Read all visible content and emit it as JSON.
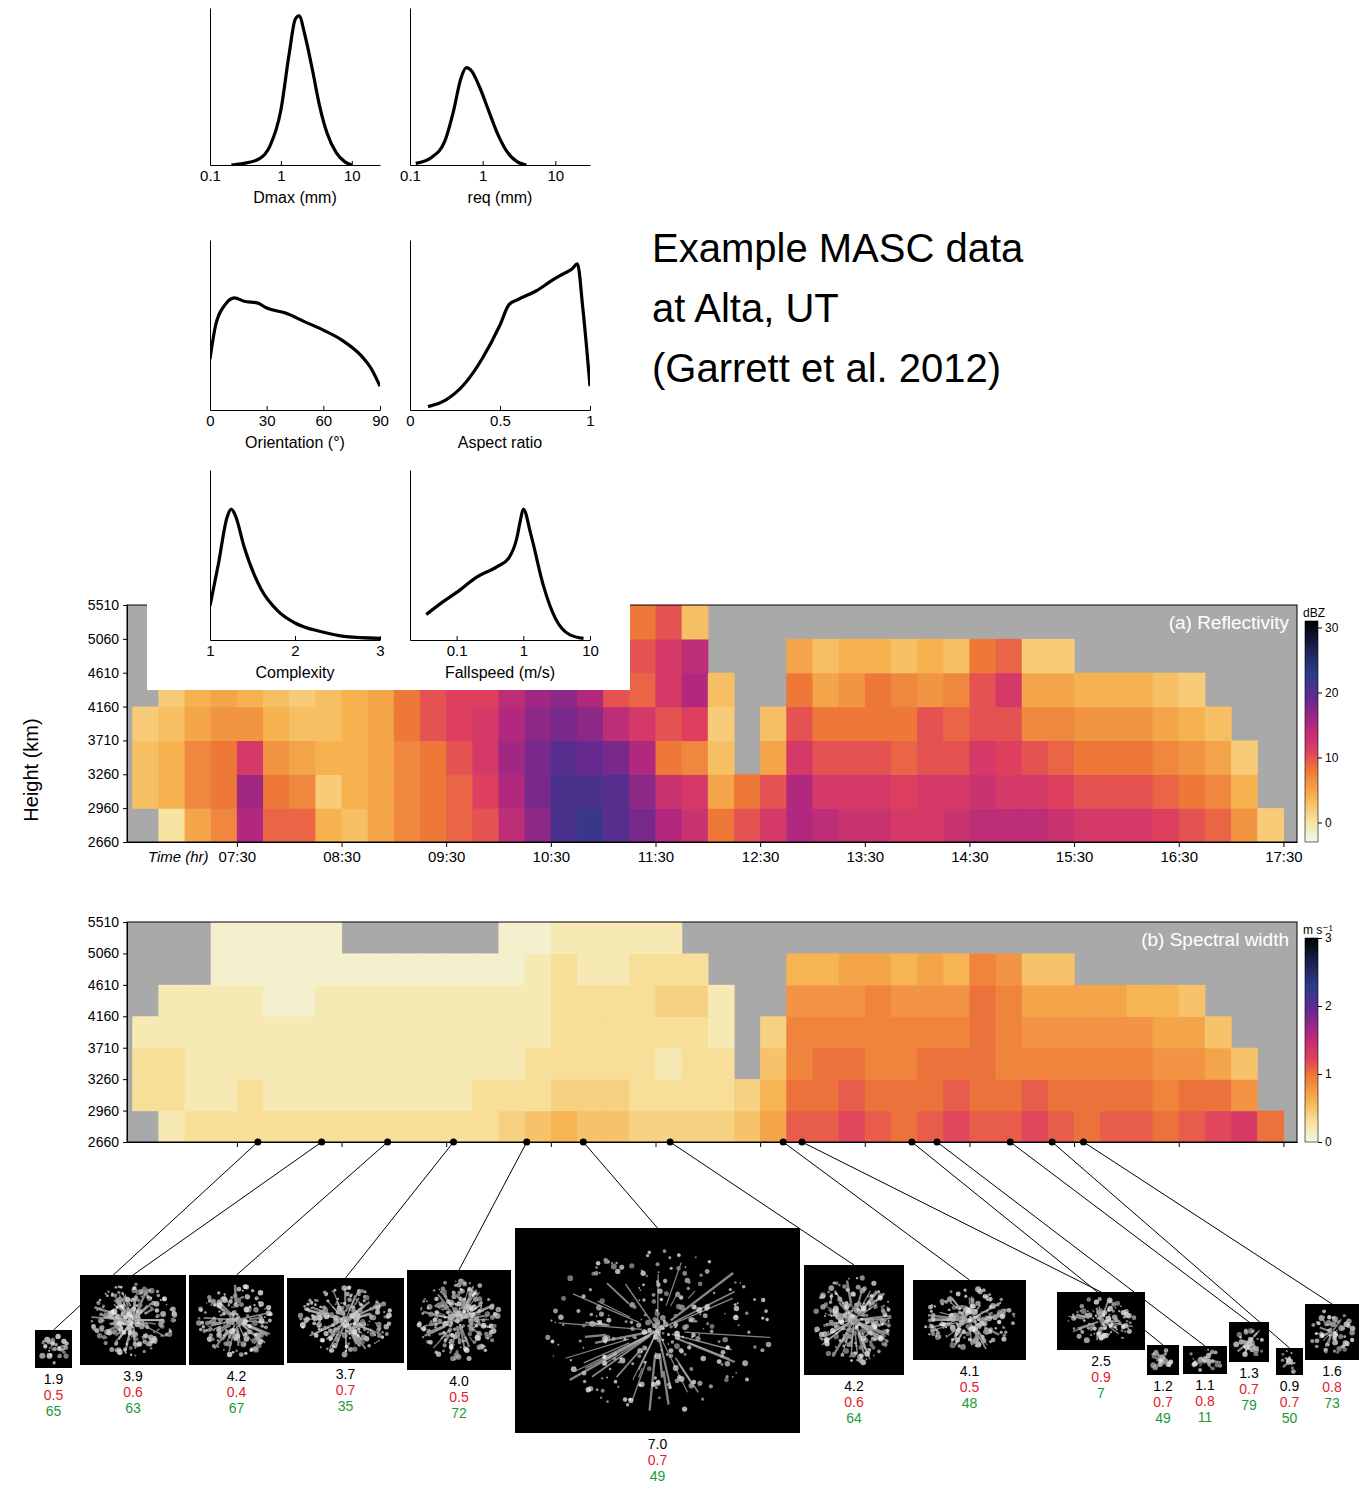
{
  "caption": [
    "Example MASC data",
    "at Alta, UT",
    "(Garrett et al. 2012)"
  ],
  "chart_data": [
    {
      "type": "line",
      "xlabel": "Dmax (mm)",
      "x": [
        0.2,
        0.3,
        0.5,
        0.7,
        1.0,
        1.3,
        1.6,
        1.8,
        2.2,
        2.8,
        3.5,
        4.5,
        6,
        8,
        10
      ],
      "values": [
        0,
        0.01,
        0.04,
        0.12,
        0.35,
        0.7,
        0.93,
        0.95,
        0.82,
        0.6,
        0.38,
        0.2,
        0.08,
        0.02,
        0
      ],
      "xlim": [
        0.1,
        25
      ],
      "ylim": [
        0,
        1
      ],
      "xticks": [
        0.1,
        1,
        10
      ],
      "log": "x",
      "tick_labels": "x",
      "color": "#000000"
    },
    {
      "type": "line",
      "xlabel": "req (mm)",
      "x": [
        0.12,
        0.2,
        0.3,
        0.4,
        0.5,
        0.6,
        0.7,
        0.9,
        1.2,
        1.6,
        2.2,
        3,
        4
      ],
      "values": [
        0.01,
        0.05,
        0.15,
        0.35,
        0.55,
        0.62,
        0.6,
        0.5,
        0.35,
        0.2,
        0.08,
        0.02,
        0
      ],
      "xlim": [
        0.1,
        30
      ],
      "ylim": [
        0,
        1
      ],
      "xticks": [
        0.1,
        1,
        10
      ],
      "log": "x",
      "tick_labels": "x",
      "color": "#000000"
    },
    {
      "type": "line",
      "xlabel": "Orientation (°)",
      "x": [
        0,
        3,
        8,
        13,
        18,
        25,
        30,
        40,
        50,
        60,
        70,
        80,
        85,
        90
      ],
      "values": [
        0.3,
        0.5,
        0.62,
        0.66,
        0.64,
        0.63,
        0.6,
        0.57,
        0.52,
        0.47,
        0.41,
        0.32,
        0.25,
        0.14
      ],
      "xlim": [
        0,
        90
      ],
      "ylim": [
        0,
        1
      ],
      "xticks": [
        0,
        30,
        60,
        90
      ],
      "tick_labels": "x",
      "color": "#000000"
    },
    {
      "type": "line",
      "xlabel": "Aspect ratio",
      "x": [
        0.1,
        0.2,
        0.3,
        0.4,
        0.5,
        0.55,
        0.6,
        0.7,
        0.8,
        0.85,
        0.9,
        0.93,
        0.96,
        1.0
      ],
      "values": [
        0.02,
        0.06,
        0.15,
        0.3,
        0.5,
        0.62,
        0.65,
        0.7,
        0.77,
        0.8,
        0.83,
        0.86,
        0.6,
        0.14
      ],
      "xlim": [
        0,
        1
      ],
      "ylim": [
        0,
        1
      ],
      "xticks": [
        0,
        0.5,
        1
      ],
      "tick_labels": "x",
      "color": "#000000"
    },
    {
      "type": "line",
      "xlabel": "Complexity",
      "x": [
        1,
        1.1,
        1.2,
        1.25,
        1.3,
        1.4,
        1.6,
        1.8,
        2.0,
        2.3,
        2.6,
        3
      ],
      "values": [
        0.2,
        0.45,
        0.72,
        0.77,
        0.73,
        0.55,
        0.3,
        0.17,
        0.1,
        0.05,
        0.02,
        0.01
      ],
      "xlim": [
        1,
        3
      ],
      "ylim": [
        0,
        1
      ],
      "xticks": [
        1,
        2,
        3
      ],
      "tick_labels": "x",
      "color": "#000000"
    },
    {
      "type": "line",
      "xlabel": "Fallspeed (m/s)",
      "x": [
        0.035,
        0.06,
        0.1,
        0.2,
        0.4,
        0.6,
        0.8,
        0.9,
        1.0,
        1.3,
        2,
        3,
        5,
        8
      ],
      "values": [
        0.15,
        0.22,
        0.28,
        0.37,
        0.43,
        0.48,
        0.6,
        0.7,
        0.77,
        0.62,
        0.32,
        0.13,
        0.03,
        0.01
      ],
      "xlim": [
        0.02,
        10
      ],
      "ylim": [
        0,
        1
      ],
      "xticks": [
        0.1,
        1,
        10
      ],
      "log": "x",
      "tick_labels": "x",
      "color": "#000000"
    },
    {
      "type": "heatmap",
      "title": "(a) Reflectivity",
      "xlabel": "Time (hr)",
      "ylabel": "Height (km)",
      "x_edges": [
        6.5,
        6.75,
        7,
        7.25,
        7.5,
        7.75,
        8,
        8.25,
        8.5,
        8.75,
        9,
        9.25,
        9.5,
        9.75,
        10,
        10.25,
        10.5,
        10.75,
        11,
        11.25,
        11.5,
        11.75,
        12,
        12.25,
        12.5,
        12.75,
        13,
        13.25,
        13.5,
        13.75,
        14,
        14.25,
        14.5,
        14.75,
        15,
        15.25,
        15.5,
        15.75,
        16,
        16.25,
        16.5,
        16.75,
        17,
        17.25,
        17.5
      ],
      "y_edges": [
        2660,
        2960,
        3260,
        3710,
        4160,
        4610,
        5060,
        5510
      ],
      "cells": [
        [
          null,
          0,
          5,
          7,
          15,
          9,
          9,
          4,
          3,
          5,
          7,
          8,
          9,
          10,
          14,
          17,
          21,
          22,
          20,
          18,
          15,
          13,
          8,
          10,
          12,
          15,
          14,
          13,
          13,
          12,
          12,
          13,
          14,
          14,
          14,
          13,
          12,
          12,
          12,
          11,
          10,
          9,
          6,
          2
        ],
        [
          3,
          4,
          7,
          8,
          16,
          8,
          7,
          2,
          4,
          5,
          7,
          8,
          9,
          11,
          15,
          18,
          21,
          21,
          20,
          17,
          13,
          12,
          5,
          8,
          10,
          15,
          12,
          12,
          12,
          11,
          12,
          12,
          13,
          12,
          12,
          11,
          10,
          10,
          10,
          9,
          8,
          7,
          4,
          null
        ],
        [
          3,
          4,
          7,
          8,
          12,
          6,
          5,
          4,
          4,
          5,
          7,
          8,
          10,
          12,
          16,
          18,
          20,
          19,
          18,
          15,
          8,
          7,
          3,
          null,
          5,
          12,
          10,
          10,
          10,
          9,
          10,
          10,
          12,
          11,
          10,
          9,
          8,
          8,
          8,
          7,
          6,
          5,
          2,
          null
        ],
        [
          2,
          3,
          5,
          6,
          6,
          4,
          3,
          3,
          4,
          5,
          8,
          10,
          11,
          12,
          15,
          17,
          18,
          17,
          14,
          12,
          10,
          11,
          2,
          null,
          3,
          10,
          8,
          8,
          8,
          8,
          10,
          9,
          10,
          10,
          7,
          7,
          6,
          6,
          6,
          5,
          4,
          3,
          null,
          null
        ],
        [
          null,
          2,
          4,
          5,
          4,
          3,
          2,
          3,
          4,
          5,
          8,
          10,
          11,
          11,
          14,
          16,
          17,
          15,
          10,
          9,
          12,
          15,
          3,
          null,
          null,
          8,
          5,
          6,
          8,
          7,
          6,
          7,
          10,
          12,
          5,
          5,
          4,
          4,
          4,
          3,
          2,
          null,
          null,
          null
        ],
        [
          null,
          null,
          null,
          null,
          null,
          null,
          null,
          null,
          null,
          null,
          null,
          null,
          null,
          null,
          null,
          null,
          null,
          null,
          null,
          10,
          12,
          14,
          null,
          null,
          null,
          5,
          3,
          4,
          4,
          3,
          4,
          3,
          8,
          9,
          2,
          2,
          null,
          null,
          null,
          null,
          null,
          null,
          null,
          null
        ],
        [
          null,
          null,
          null,
          null,
          null,
          null,
          null,
          null,
          null,
          null,
          null,
          null,
          null,
          null,
          null,
          null,
          null,
          null,
          null,
          8,
          10,
          3,
          null,
          null,
          null,
          null,
          null,
          null,
          null,
          null,
          null,
          null,
          null,
          null,
          null,
          null,
          null,
          null,
          null,
          null,
          null,
          null,
          null,
          null
        ]
      ],
      "xlim": [
        6.45,
        17.63
      ],
      "ylim": [
        2660,
        5510
      ],
      "xticks": [
        {
          "value": 7.5,
          "label": "07:30"
        },
        {
          "value": 8.5,
          "label": "08:30"
        },
        {
          "value": 9.5,
          "label": "09:30"
        },
        {
          "value": 10.5,
          "label": "10:30"
        },
        {
          "value": 11.5,
          "label": "11:30"
        },
        {
          "value": 12.5,
          "label": "12:30"
        },
        {
          "value": 13.5,
          "label": "13:30"
        },
        {
          "value": 14.5,
          "label": "14:30"
        },
        {
          "value": 15.5,
          "label": "15:30"
        },
        {
          "value": 16.5,
          "label": "16:30"
        },
        {
          "value": 17.5,
          "label": "17:30"
        }
      ],
      "yticks": [
        2660,
        2960,
        3260,
        3710,
        4160,
        4610,
        5060,
        5510
      ],
      "colorbar": {
        "label": "dBZ",
        "range": [
          -3,
          31
        ],
        "ticks": [
          0,
          10,
          20,
          30
        ]
      }
    },
    {
      "type": "heatmap",
      "title": "(b) Spectral width",
      "x_edges": [
        6.5,
        6.75,
        7,
        7.25,
        7.5,
        7.75,
        8,
        8.25,
        8.5,
        8.75,
        9,
        9.25,
        9.5,
        9.75,
        10,
        10.25,
        10.5,
        10.75,
        11,
        11.25,
        11.5,
        11.75,
        12,
        12.25,
        12.5,
        12.75,
        13,
        13.25,
        13.5,
        13.75,
        14,
        14.25,
        14.5,
        14.75,
        15,
        15.25,
        15.5,
        15.75,
        16,
        16.25,
        16.5,
        16.75,
        17,
        17.25,
        17.5
      ],
      "y_edges": [
        2660,
        2960,
        3260,
        3710,
        4160,
        4610,
        5060,
        5510
      ],
      "cells": [
        [
          null,
          0.2,
          0.3,
          0.3,
          0.3,
          0.3,
          0.3,
          0.3,
          0.3,
          0.3,
          0.3,
          0.3,
          0.3,
          0.3,
          0.4,
          0.5,
          0.6,
          0.5,
          0.5,
          0.4,
          0.4,
          0.4,
          0.4,
          0.5,
          0.7,
          1.1,
          1.1,
          1.2,
          1.1,
          1.0,
          1.1,
          1.2,
          1.1,
          1.1,
          1.2,
          1.1,
          1.0,
          1.1,
          1.1,
          1.0,
          1.1,
          1.2,
          1.3,
          1.0
        ],
        [
          0.3,
          0.3,
          0.2,
          0.2,
          0.3,
          0.2,
          0.2,
          0.2,
          0.2,
          0.2,
          0.2,
          0.2,
          0.2,
          0.3,
          0.3,
          0.3,
          0.4,
          0.4,
          0.4,
          0.3,
          0.3,
          0.3,
          0.3,
          0.4,
          0.6,
          1.0,
          1.0,
          1.1,
          1.0,
          1.0,
          1.0,
          1.1,
          1.0,
          1.0,
          1.1,
          1.0,
          1.0,
          1.0,
          1.0,
          0.9,
          1.0,
          1.0,
          0.8,
          null
        ],
        [
          0.3,
          0.3,
          0.2,
          0.2,
          0.2,
          0.2,
          0.2,
          0.2,
          0.2,
          0.2,
          0.2,
          0.2,
          0.2,
          0.2,
          0.2,
          0.3,
          0.3,
          0.3,
          0.3,
          0.3,
          0.2,
          0.3,
          0.3,
          null,
          0.5,
          0.9,
          1.0,
          1.0,
          0.9,
          0.9,
          1.0,
          1.0,
          1.0,
          0.9,
          0.9,
          0.9,
          0.9,
          0.9,
          0.9,
          0.8,
          0.8,
          0.7,
          0.5,
          null
        ],
        [
          0.2,
          0.2,
          0.2,
          0.2,
          0.2,
          0.2,
          0.2,
          0.2,
          0.2,
          0.2,
          0.2,
          0.2,
          0.2,
          0.2,
          0.2,
          0.2,
          0.3,
          0.3,
          0.3,
          0.3,
          0.3,
          0.3,
          0.2,
          null,
          0.4,
          0.9,
          0.9,
          0.9,
          0.9,
          0.9,
          0.9,
          0.9,
          1.0,
          0.9,
          0.8,
          0.8,
          0.8,
          0.8,
          0.8,
          0.7,
          0.7,
          0.5,
          null,
          null
        ],
        [
          null,
          0.2,
          0.2,
          0.2,
          0.2,
          0.1,
          0.1,
          0.2,
          0.2,
          0.2,
          0.2,
          0.2,
          0.2,
          0.2,
          0.2,
          0.2,
          0.3,
          0.3,
          0.3,
          0.3,
          0.4,
          0.4,
          0.2,
          null,
          null,
          0.8,
          0.8,
          0.8,
          0.9,
          0.8,
          0.8,
          0.8,
          1.0,
          0.9,
          0.7,
          0.7,
          0.7,
          0.7,
          0.6,
          0.6,
          0.5,
          null,
          null,
          null
        ],
        [
          null,
          null,
          null,
          0.1,
          0.1,
          0.1,
          0.1,
          0.1,
          0.1,
          0.1,
          0.1,
          0.1,
          0.1,
          0.1,
          0.1,
          0.2,
          0.3,
          0.2,
          0.2,
          0.3,
          0.3,
          0.3,
          null,
          null,
          null,
          0.6,
          0.6,
          0.7,
          0.7,
          0.6,
          0.7,
          0.6,
          0.9,
          0.8,
          0.5,
          0.5,
          null,
          null,
          null,
          null,
          null,
          null,
          null,
          null
        ],
        [
          null,
          null,
          null,
          0.1,
          0.1,
          0.1,
          0.1,
          0.1,
          null,
          null,
          null,
          null,
          null,
          null,
          0.1,
          0.1,
          0.2,
          0.2,
          0.2,
          0.2,
          0.2,
          null,
          null,
          null,
          null,
          null,
          null,
          null,
          null,
          null,
          null,
          null,
          null,
          null,
          null,
          null,
          null,
          null,
          null,
          null,
          null,
          null,
          null,
          null
        ]
      ],
      "xlim": [
        6.45,
        17.63
      ],
      "ylim": [
        2660,
        5510
      ],
      "xticks": [
        {
          "value": 7.5,
          "label": "07:30"
        },
        {
          "value": 8.5,
          "label": "08:30"
        },
        {
          "value": 9.5,
          "label": "09:30"
        },
        {
          "value": 10.5,
          "label": "10:30"
        },
        {
          "value": 11.5,
          "label": "11:30"
        },
        {
          "value": 12.5,
          "label": "12:30"
        },
        {
          "value": 13.5,
          "label": "13:30"
        },
        {
          "value": 14.5,
          "label": "14:30"
        },
        {
          "value": 15.5,
          "label": "15:30"
        },
        {
          "value": 16.5,
          "label": "16:30"
        },
        {
          "value": 17.5,
          "label": "17:30"
        }
      ],
      "yticks": [
        2660,
        2960,
        3260,
        3710,
        4160,
        4610,
        5060,
        5510
      ],
      "tick_labels": "y",
      "colorbar": {
        "label": "m s⁻¹",
        "range": [
          0,
          3
        ],
        "ticks": [
          0,
          1,
          2,
          3
        ]
      }
    }
  ],
  "particles": {
    "x": [
      7.7,
      8.31,
      8.94,
      9.57,
      10.27,
      10.81,
      11.64,
      12.72,
      12.9,
      13.95,
      14.19,
      14.89,
      15.29,
      15.59
    ],
    "size": {
      "values": [
        1.9,
        3.9,
        4.2,
        3.7,
        4.0,
        7.0,
        4.2,
        4.1,
        2.5,
        1.2,
        1.1,
        1.3,
        0.9,
        1.6
      ],
      "value_labels": [
        "1.9",
        "3.9",
        "4.2",
        "3.7",
        "4.0",
        "7.0",
        "4.2",
        "4.1",
        "2.5",
        "1.2",
        "1.1",
        "1.3",
        "0.9",
        "1.6"
      ]
    },
    "ratio": {
      "values": [
        0.5,
        0.6,
        0.4,
        0.7,
        0.5,
        0.7,
        0.6,
        0.5,
        0.9,
        0.7,
        0.8,
        0.7,
        0.7,
        0.8
      ]
    },
    "angle": {
      "values": [
        65,
        63,
        67,
        35,
        72,
        49,
        64,
        48,
        7,
        49,
        11,
        79,
        50,
        73
      ]
    }
  }
}
